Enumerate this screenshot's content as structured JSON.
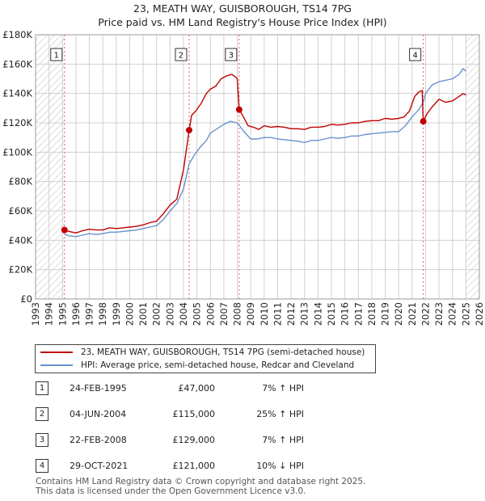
{
  "title": {
    "line1": "23, MEATH WAY, GUISBOROUGH, TS14 7PG",
    "line2": "Price paid vs. HM Land Registry's House Price Index (HPI)"
  },
  "colors": {
    "property": "#c00000",
    "hpi": "#6a92cc",
    "grid": "#d0d0d0",
    "marker_line": "#e06060",
    "hatch": "#bbbbbb"
  },
  "chart_data": {
    "type": "line",
    "title": "Price paid vs. HM Land Registry's House Price Index (HPI)",
    "xlabel": "",
    "ylabel": "",
    "xlim": [
      1993,
      2026
    ],
    "ylim": [
      0,
      180000
    ],
    "grid": true,
    "x_ticks": [
      "1993",
      "1994",
      "1995",
      "1996",
      "1997",
      "1998",
      "1999",
      "2000",
      "2001",
      "2002",
      "2003",
      "2004",
      "2005",
      "2006",
      "2007",
      "2008",
      "2009",
      "2010",
      "2011",
      "2012",
      "2013",
      "2014",
      "2015",
      "2016",
      "2017",
      "2018",
      "2019",
      "2020",
      "2021",
      "2022",
      "2023",
      "2024",
      "2025",
      "2026"
    ],
    "y_ticks": [
      {
        "value": 0,
        "label": "£0"
      },
      {
        "value": 20000,
        "label": "£20K"
      },
      {
        "value": 40000,
        "label": "£40K"
      },
      {
        "value": 60000,
        "label": "£60K"
      },
      {
        "value": 80000,
        "label": "£80K"
      },
      {
        "value": 100000,
        "label": "£100K"
      },
      {
        "value": 120000,
        "label": "£120K"
      },
      {
        "value": 140000,
        "label": "£140K"
      },
      {
        "value": 160000,
        "label": "£160K"
      },
      {
        "value": 180000,
        "label": "£180K"
      }
    ],
    "hatched_ranges": [
      [
        1993,
        1995.15
      ],
      [
        2025.0,
        2026
      ]
    ],
    "series": [
      {
        "name": "23, MEATH WAY, GUISBOROUGH, TS14 7PG (semi-detached house)",
        "color": "#c00000",
        "x": [
          1995.15,
          1995.5,
          1996,
          1996.5,
          1997,
          1997.5,
          1998,
          1998.5,
          1999,
          1999.5,
          2000,
          2000.5,
          2001,
          2001.5,
          2002,
          2002.5,
          2003,
          2003.5,
          2004,
          2004.42,
          2004.6,
          2004.9,
          2005.3,
          2005.7,
          2006,
          2006.4,
          2006.8,
          2007.2,
          2007.6,
          2007.9,
          2008.0,
          2008.14,
          2008.4,
          2008.8,
          2009.2,
          2009.6,
          2010,
          2010.5,
          2011,
          2011.5,
          2012,
          2012.5,
          2013,
          2013.5,
          2014,
          2014.5,
          2015,
          2015.5,
          2016,
          2016.5,
          2017,
          2017.5,
          2018,
          2018.5,
          2019,
          2019.5,
          2020,
          2020.4,
          2020.8,
          2021.2,
          2021.5,
          2021.75,
          2021.83,
          2022.1,
          2022.5,
          2023,
          2023.5,
          2024,
          2024.5,
          2024.8,
          2025.0
        ],
        "values": [
          47000,
          46000,
          45000,
          46500,
          47500,
          47000,
          47000,
          48500,
          48000,
          48500,
          49000,
          49500,
          50500,
          52000,
          53000,
          58000,
          64000,
          68000,
          88000,
          115000,
          125000,
          128000,
          133000,
          140000,
          143000,
          145000,
          150000,
          152000,
          153000,
          151000,
          150000,
          129000,
          125000,
          118000,
          117000,
          115500,
          118000,
          117000,
          117500,
          117000,
          116000,
          116000,
          115500,
          117000,
          117000,
          117500,
          119000,
          118500,
          119000,
          120000,
          120000,
          121000,
          121500,
          121500,
          123000,
          122500,
          123000,
          124000,
          128000,
          138000,
          141000,
          142000,
          121000,
          126000,
          131000,
          136000,
          134000,
          135000,
          138000,
          140000,
          139000
        ]
      },
      {
        "name": "HPI: Average price, semi-detached house, Redcar and Cleveland",
        "color": "#6a92cc",
        "x": [
          1995.15,
          1995.5,
          1996,
          1996.5,
          1997,
          1997.5,
          1998,
          1998.5,
          1999,
          1999.5,
          2000,
          2000.5,
          2001,
          2001.5,
          2002,
          2002.5,
          2003,
          2003.5,
          2004,
          2004.42,
          2004.8,
          2005.3,
          2005.7,
          2006,
          2006.5,
          2007,
          2007.5,
          2008,
          2008.5,
          2009,
          2009.5,
          2010,
          2010.5,
          2011,
          2011.5,
          2012,
          2012.5,
          2013,
          2013.5,
          2014,
          2014.5,
          2015,
          2015.5,
          2016,
          2016.5,
          2017,
          2017.5,
          2018,
          2018.5,
          2019,
          2019.5,
          2020,
          2020.5,
          2021,
          2021.5,
          2021.83,
          2022,
          2022.5,
          2023,
          2023.5,
          2024,
          2024.5,
          2024.8,
          2025.0
        ],
        "values": [
          44000,
          43000,
          42500,
          43500,
          44500,
          44000,
          44500,
          45500,
          45500,
          46000,
          46500,
          47000,
          48000,
          49000,
          50000,
          54000,
          60000,
          65000,
          75000,
          92000,
          98000,
          104000,
          108000,
          113000,
          116000,
          119000,
          121000,
          120000,
          114000,
          109000,
          109000,
          110000,
          110000,
          109000,
          108500,
          108000,
          107500,
          106500,
          108000,
          108000,
          109000,
          110000,
          109500,
          110000,
          111000,
          111000,
          112000,
          112500,
          113000,
          113500,
          114000,
          114000,
          118000,
          124000,
          129000,
          134000,
          140000,
          146000,
          148000,
          149000,
          150000,
          153000,
          157000,
          155000
        ]
      }
    ],
    "sales": [
      {
        "label": "1",
        "x": 1995.15,
        "price": 47000
      },
      {
        "label": "2",
        "x": 2004.42,
        "price": 115000
      },
      {
        "label": "3",
        "x": 2008.14,
        "price": 129000
      },
      {
        "label": "4",
        "x": 2021.83,
        "price": 121000
      }
    ]
  },
  "legend": {
    "property_label": "23, MEATH WAY, GUISBOROUGH, TS14 7PG (semi-detached house)",
    "hpi_label": "HPI: Average price, semi-detached house, Redcar and Cleveland"
  },
  "sales_table": [
    {
      "num": "1",
      "date": "24-FEB-1995",
      "price": "£47,000",
      "hpi": "7% ↑ HPI"
    },
    {
      "num": "2",
      "date": "04-JUN-2004",
      "price": "£115,000",
      "hpi": "25% ↑ HPI"
    },
    {
      "num": "3",
      "date": "22-FEB-2008",
      "price": "£129,000",
      "hpi": "7% ↑ HPI"
    },
    {
      "num": "4",
      "date": "29-OCT-2021",
      "price": "£121,000",
      "hpi": "10% ↓ HPI"
    }
  ],
  "footer": {
    "line1": "Contains HM Land Registry data © Crown copyright and database right 2025.",
    "line2": "This data is licensed under the Open Government Licence v3.0."
  }
}
